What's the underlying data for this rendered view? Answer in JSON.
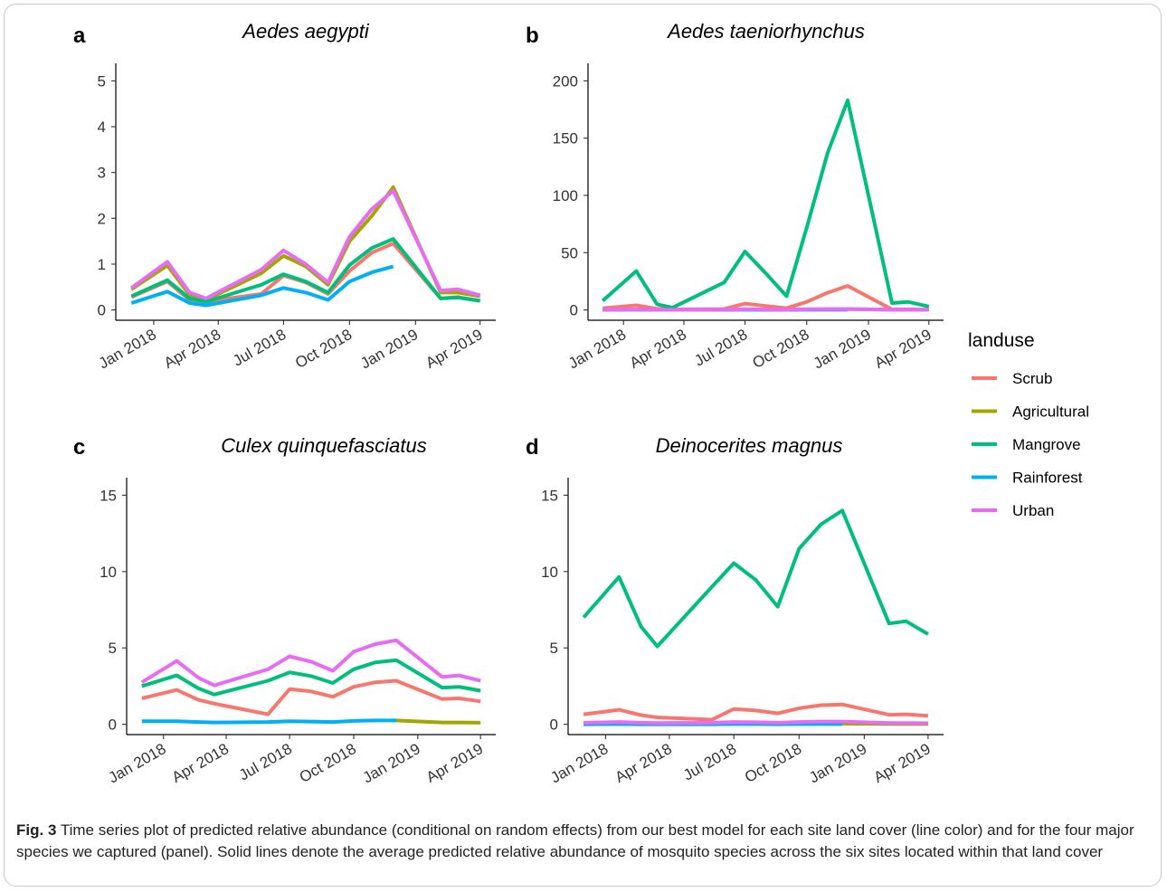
{
  "chart_data": [
    {
      "type": "line",
      "panel": "a",
      "title": "Aedes aegypti",
      "x": [
        "2017-12-01",
        "2018-01-20",
        "2018-02-20",
        "2018-03-15",
        "2018-05-31",
        "2018-07-01",
        "2018-08-01",
        "2018-09-01",
        "2018-10-01",
        "2018-11-01",
        "2018-12-01",
        "2019-02-05",
        "2019-03-01",
        "2019-04-01"
      ],
      "ylim": [
        0,
        5
      ],
      "yticks": [
        0,
        1,
        2,
        3,
        4,
        5
      ],
      "xticks": [
        {
          "date": "2018-01-01",
          "label": "Jan 2018"
        },
        {
          "date": "2018-04-01",
          "label": "Apr 2018"
        },
        {
          "date": "2018-07-01",
          "label": "Jul 2018"
        },
        {
          "date": "2018-10-01",
          "label": "Oct 2018"
        },
        {
          "date": "2019-01-01",
          "label": "Jan 2019"
        },
        {
          "date": "2019-04-01",
          "label": "Apr 2019"
        }
      ],
      "series": [
        {
          "name": "Scrub",
          "values": [
            0.28,
            0.62,
            0.22,
            0.18,
            0.35,
            0.75,
            0.6,
            0.35,
            0.85,
            1.25,
            1.45,
            0.25,
            0.28,
            0.2
          ]
        },
        {
          "name": "Agricultural",
          "values": [
            0.45,
            0.97,
            0.33,
            0.22,
            0.8,
            1.18,
            0.95,
            0.55,
            1.5,
            2.05,
            2.68,
            0.38,
            0.38,
            0.3
          ]
        },
        {
          "name": "Mangrove",
          "values": [
            0.3,
            0.65,
            0.25,
            0.18,
            0.55,
            0.78,
            0.62,
            0.38,
            0.98,
            1.35,
            1.55,
            0.25,
            0.27,
            0.2
          ]
        },
        {
          "name": "Rainforest",
          "values": [
            0.15,
            0.4,
            0.15,
            0.1,
            0.32,
            0.48,
            0.38,
            0.22,
            0.62,
            0.82,
            0.95,
            null,
            null,
            null
          ]
        },
        {
          "name": "Urban",
          "values": [
            0.48,
            1.05,
            0.38,
            0.25,
            0.88,
            1.3,
            1.0,
            0.6,
            1.6,
            2.2,
            2.6,
            0.42,
            0.45,
            0.32
          ]
        }
      ]
    },
    {
      "type": "line",
      "panel": "b",
      "title": "Aedes taeniorhynchus",
      "x": [
        "2017-12-01",
        "2018-01-20",
        "2018-02-20",
        "2018-03-15",
        "2018-05-31",
        "2018-07-01",
        "2018-08-01",
        "2018-09-01",
        "2018-10-01",
        "2018-11-01",
        "2018-12-01",
        "2019-02-05",
        "2019-03-01",
        "2019-04-01"
      ],
      "ylim": [
        0,
        200
      ],
      "yticks": [
        0,
        50,
        100,
        150,
        200
      ],
      "xticks": [
        {
          "date": "2018-01-01",
          "label": "Jan 2018"
        },
        {
          "date": "2018-04-01",
          "label": "Apr 2018"
        },
        {
          "date": "2018-07-01",
          "label": "Jul 2018"
        },
        {
          "date": "2018-10-01",
          "label": "Oct 2018"
        },
        {
          "date": "2019-01-01",
          "label": "Jan 2019"
        },
        {
          "date": "2019-04-01",
          "label": "Apr 2019"
        }
      ],
      "series": [
        {
          "name": "Scrub",
          "values": [
            1.5,
            4,
            1,
            0.5,
            0.8,
            5.5,
            3.5,
            1.5,
            7,
            15,
            21,
            0.5,
            0.5,
            0.3
          ]
        },
        {
          "name": "Agricultural",
          "values": [
            0.3,
            0.4,
            0.2,
            0.1,
            0.2,
            0.4,
            0.3,
            0.2,
            0.4,
            0.5,
            0.6,
            0.2,
            0.2,
            0.1
          ]
        },
        {
          "name": "Mangrove",
          "values": [
            8,
            34,
            5,
            2,
            24,
            51,
            32,
            12,
            72,
            137,
            183,
            6,
            7,
            3
          ]
        },
        {
          "name": "Rainforest",
          "values": [
            0.1,
            0.2,
            0.1,
            0.1,
            0.1,
            0.2,
            0.1,
            0.1,
            0.2,
            0.2,
            0.2,
            null,
            null,
            null
          ]
        },
        {
          "name": "Urban",
          "values": [
            0.2,
            0.5,
            0.2,
            0.1,
            0.3,
            0.6,
            0.4,
            0.2,
            0.6,
            0.8,
            0.9,
            0.2,
            0.2,
            0.1
          ]
        }
      ]
    },
    {
      "type": "line",
      "panel": "c",
      "title": "Culex quinquefasciatus",
      "x": [
        "2017-12-01",
        "2018-01-20",
        "2018-02-20",
        "2018-03-15",
        "2018-05-31",
        "2018-07-01",
        "2018-08-01",
        "2018-09-01",
        "2018-10-01",
        "2018-11-01",
        "2018-12-01",
        "2019-02-05",
        "2019-03-01",
        "2019-04-01"
      ],
      "ylim": [
        0,
        15
      ],
      "yticks": [
        0,
        5,
        10,
        15
      ],
      "xticks": [
        {
          "date": "2018-01-01",
          "label": "Jan 2018"
        },
        {
          "date": "2018-04-01",
          "label": "Apr 2018"
        },
        {
          "date": "2018-07-01",
          "label": "Jul 2018"
        },
        {
          "date": "2018-10-01",
          "label": "Oct 2018"
        },
        {
          "date": "2019-01-01",
          "label": "Jan 2019"
        },
        {
          "date": "2019-04-01",
          "label": "Apr 2019"
        }
      ],
      "series": [
        {
          "name": "Scrub",
          "values": [
            1.7,
            2.25,
            1.6,
            1.35,
            0.65,
            2.3,
            2.15,
            1.8,
            2.45,
            2.75,
            2.85,
            1.65,
            1.7,
            1.5
          ]
        },
        {
          "name": "Agricultural",
          "values": [
            null,
            null,
            null,
            null,
            null,
            null,
            null,
            null,
            null,
            null,
            0.25,
            0.12,
            0.12,
            0.1
          ]
        },
        {
          "name": "Mangrove",
          "values": [
            2.5,
            3.2,
            2.35,
            1.95,
            2.85,
            3.4,
            3.15,
            2.7,
            3.6,
            4.05,
            4.2,
            2.4,
            2.45,
            2.2
          ]
        },
        {
          "name": "Rainforest",
          "values": [
            0.2,
            0.2,
            0.15,
            0.12,
            0.15,
            0.2,
            0.18,
            0.15,
            0.22,
            0.25,
            0.25,
            null,
            null,
            null
          ]
        },
        {
          "name": "Urban",
          "values": [
            2.75,
            4.15,
            3.05,
            2.55,
            3.6,
            4.45,
            4.1,
            3.5,
            4.75,
            5.25,
            5.5,
            3.1,
            3.2,
            2.85
          ]
        }
      ]
    },
    {
      "type": "line",
      "panel": "d",
      "title": "Deinocerites magnus",
      "x": [
        "2017-12-01",
        "2018-01-20",
        "2018-02-20",
        "2018-03-15",
        "2018-05-31",
        "2018-07-01",
        "2018-08-01",
        "2018-09-01",
        "2018-10-01",
        "2018-11-01",
        "2018-12-01",
        "2019-02-05",
        "2019-03-01",
        "2019-04-01"
      ],
      "ylim": [
        0,
        15
      ],
      "yticks": [
        0,
        5,
        10,
        15
      ],
      "xticks": [
        {
          "date": "2018-01-01",
          "label": "Jan 2018"
        },
        {
          "date": "2018-04-01",
          "label": "Apr 2018"
        },
        {
          "date": "2018-07-01",
          "label": "Jul 2018"
        },
        {
          "date": "2018-10-01",
          "label": "Oct 2018"
        },
        {
          "date": "2019-01-01",
          "label": "Jan 2019"
        },
        {
          "date": "2019-04-01",
          "label": "Apr 2019"
        }
      ],
      "series": [
        {
          "name": "Scrub",
          "values": [
            0.65,
            0.95,
            0.6,
            0.45,
            0.3,
            1.0,
            0.9,
            0.72,
            1.05,
            1.25,
            1.3,
            0.62,
            0.65,
            0.55
          ]
        },
        {
          "name": "Agricultural",
          "values": [
            0.02,
            0.03,
            0.02,
            0.02,
            0.02,
            0.03,
            0.03,
            0.02,
            0.03,
            0.04,
            0.04,
            0.02,
            0.02,
            0.02
          ]
        },
        {
          "name": "Mangrove",
          "values": [
            7.0,
            9.65,
            6.4,
            5.1,
            9.0,
            10.55,
            9.45,
            7.7,
            11.5,
            13.1,
            14.0,
            6.6,
            6.75,
            5.9
          ]
        },
        {
          "name": "Rainforest",
          "values": [
            0.0,
            0.01,
            0.0,
            0.0,
            0.0,
            0.01,
            0.01,
            0.0,
            0.01,
            0.01,
            0.01,
            null,
            null,
            null
          ]
        },
        {
          "name": "Urban",
          "values": [
            0.1,
            0.15,
            0.1,
            0.08,
            0.1,
            0.15,
            0.13,
            0.1,
            0.15,
            0.18,
            0.18,
            0.08,
            0.08,
            0.07
          ]
        }
      ]
    }
  ],
  "legend": {
    "title": "landuse",
    "items": [
      {
        "name": "Scrub",
        "color": "#F8766D"
      },
      {
        "name": "Agricultural",
        "color": "#A3A500"
      },
      {
        "name": "Mangrove",
        "color": "#00BF7D"
      },
      {
        "name": "Rainforest",
        "color": "#00B0F6"
      },
      {
        "name": "Urban",
        "color": "#E76BF3"
      }
    ]
  },
  "caption": {
    "label": "Fig. 3",
    "text": "Time series plot of predicted relative abundance (conditional on random effects) from our best model for each site land cover (line color) and for the four major species we captured (panel). Solid lines denote the average predicted relative abundance of mosquito species across the six sites located within that land cover"
  }
}
